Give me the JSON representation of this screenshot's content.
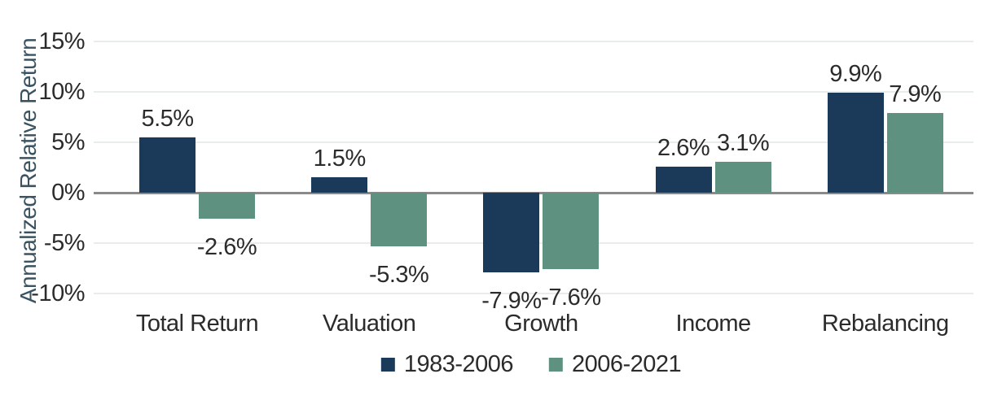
{
  "chart_data": {
    "type": "bar",
    "title": "",
    "xlabel": "",
    "ylabel": "Annualized Relative Return",
    "categories": [
      "Total Return",
      "Valuation",
      "Growth",
      "Income",
      "Rebalancing"
    ],
    "series": [
      {
        "name": "1983-2006",
        "color": "#1b3a5a",
        "values": [
          5.5,
          1.5,
          -7.9,
          2.6,
          9.9
        ],
        "labels": [
          "5.5%",
          "1.5%",
          "-7.9%",
          "2.6%",
          "9.9%"
        ]
      },
      {
        "name": "2006-2021",
        "color": "#5e9180",
        "values": [
          -2.6,
          -5.3,
          -7.6,
          3.1,
          7.9
        ],
        "labels": [
          "-2.6%",
          "-5.3%",
          "-7.6%",
          "3.1%",
          "7.9%"
        ]
      }
    ],
    "y_ticks": [
      {
        "value": 15,
        "label": "15%"
      },
      {
        "value": 10,
        "label": "10%"
      },
      {
        "value": 5,
        "label": "5%"
      },
      {
        "value": 0,
        "label": "0%"
      },
      {
        "value": -5,
        "label": "-5%"
      },
      {
        "value": -10,
        "label": "-10%"
      }
    ],
    "ylim": [
      -10,
      15
    ],
    "grid": true,
    "legend_position": "bottom",
    "colors": {
      "gridline": "#e8eceb",
      "axis_line": "#8a8a8a",
      "tick_text": "#2b2b2b",
      "value_text": "#2b2b2b",
      "category_text": "#2b2b2b",
      "legend_text": "#2b2b2b",
      "ylabel_text": "#3b5360",
      "background": "#ffffff"
    }
  }
}
